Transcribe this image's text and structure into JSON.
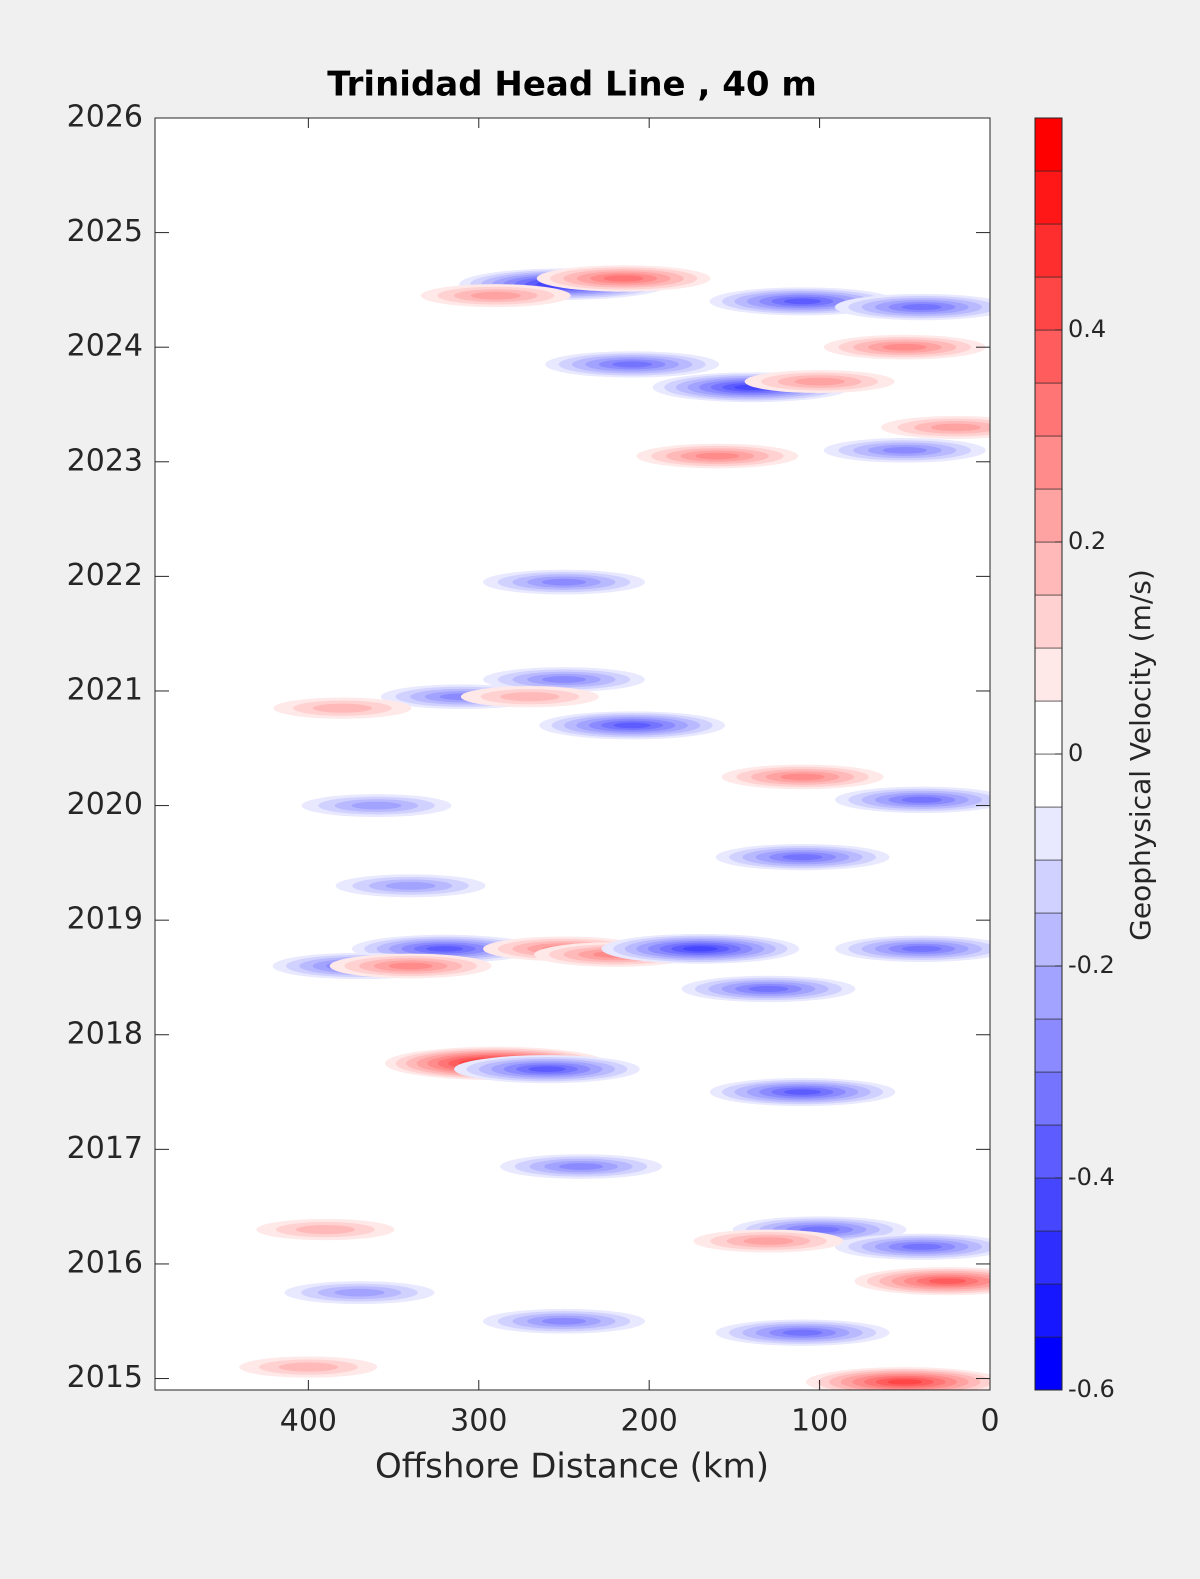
{
  "chart_data": {
    "type": "contour",
    "title": "Trinidad Head Line , 40 m",
    "xlabel": "Offshore Distance (km)",
    "colorbar_label": "Geophysical Velocity (m/s)",
    "x": [
      250,
      215,
      290,
      110,
      40,
      50,
      140,
      100,
      210,
      20,
      50,
      160,
      250,
      250,
      210,
      310,
      270,
      380,
      110,
      40,
      360,
      110,
      340,
      320,
      250,
      220,
      170,
      40,
      370,
      340,
      130,
      290,
      260,
      110,
      240,
      100,
      40,
      25,
      130,
      370,
      250,
      110,
      50,
      400,
      390
    ],
    "y": [
      2024.55,
      2024.6,
      2024.45,
      2024.4,
      2024.35,
      2024.0,
      2023.65,
      2023.7,
      2023.85,
      2023.3,
      2023.1,
      2023.05,
      2021.95,
      2021.1,
      2020.7,
      2020.95,
      2020.95,
      2020.85,
      2020.25,
      2020.05,
      2020.0,
      2019.55,
      2019.3,
      2018.75,
      2018.75,
      2018.7,
      2018.75,
      2018.75,
      2018.6,
      2018.6,
      2018.4,
      2017.75,
      2017.7,
      2017.5,
      2016.85,
      2016.3,
      2016.15,
      2015.85,
      2016.2,
      2015.75,
      2015.5,
      2015.4,
      2014.97,
      2015.1,
      2016.3
    ],
    "z": [
      -0.45,
      0.3,
      0.2,
      -0.35,
      -0.3,
      0.25,
      -0.4,
      0.2,
      -0.3,
      0.2,
      -0.25,
      0.25,
      -0.25,
      -0.25,
      -0.35,
      -0.25,
      0.15,
      0.15,
      0.25,
      -0.3,
      -0.2,
      -0.3,
      -0.2,
      -0.35,
      0.25,
      0.25,
      -0.4,
      -0.3,
      -0.3,
      0.25,
      -0.3,
      0.5,
      -0.35,
      -0.35,
      -0.25,
      -0.3,
      -0.3,
      0.35,
      0.2,
      -0.2,
      -0.25,
      -0.3,
      0.4,
      0.15,
      0.15
    ],
    "xlim": [
      490,
      0
    ],
    "xticks": [
      400,
      300,
      200,
      100,
      0
    ],
    "ylim": [
      2014.9,
      2026
    ],
    "yticks": [
      2015,
      2016,
      2017,
      2018,
      2019,
      2020,
      2021,
      2022,
      2023,
      2024,
      2025,
      2026
    ],
    "clim": [
      -0.6,
      0.6
    ],
    "cticks": [
      -0.6,
      -0.4,
      -0.2,
      0,
      0.2,
      0.4
    ],
    "contour_step": 0.05,
    "low_color": "#0000ff",
    "high_color": "#ff0000"
  }
}
